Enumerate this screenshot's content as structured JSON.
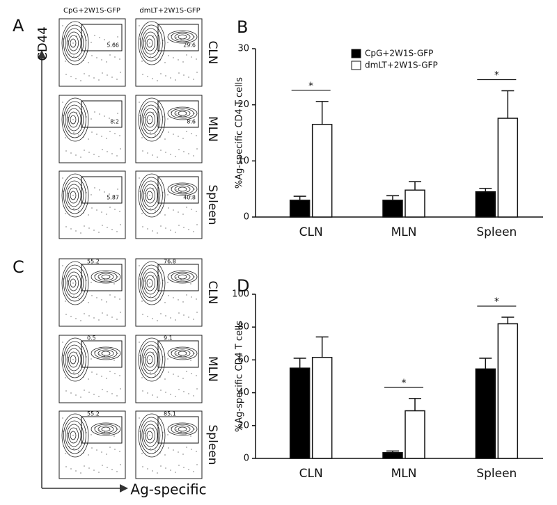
{
  "chart_data": [
    {
      "type": "bar",
      "ylabel": "%Ag-specific CD4 T cells",
      "categories": [
        "CLN",
        "MLN",
        "Spleen"
      ],
      "series": [
        {
          "name": "CpG+2W1S-GFP",
          "color": "#000000",
          "values": [
            3.0,
            3.0,
            4.5
          ],
          "errors": [
            0.7,
            0.8,
            0.6
          ]
        },
        {
          "name": "dmLT+2W1S-GFP",
          "color": "#ffffff",
          "values": [
            16.5,
            4.8,
            17.6
          ],
          "errors": [
            4.1,
            1.5,
            4.9
          ]
        }
      ],
      "ylim": [
        0,
        30
      ],
      "yticks": [
        0,
        10,
        20,
        30
      ],
      "annotations": [
        "*",
        "*"
      ],
      "legend": "top"
    },
    {
      "type": "bar",
      "ylabel": "%Ag-specific CD4 T cells",
      "categories": [
        "CLN",
        "MLN",
        "Spleen"
      ],
      "series": [
        {
          "color": "#000000",
          "values": [
            55,
            3.5,
            54.5
          ],
          "errors": [
            6,
            1,
            6.5
          ]
        },
        {
          "color": "#ffffff",
          "values": [
            61.5,
            29,
            82
          ],
          "errors": [
            12.5,
            7.5,
            4
          ]
        }
      ],
      "ylim": [
        0,
        100
      ],
      "yticks": [
        0,
        20,
        40,
        60,
        80,
        100
      ],
      "annotations": [
        "*",
        "*"
      ]
    }
  ],
  "labels": {
    "panels": [
      "A",
      "B",
      "C",
      "D"
    ],
    "conditions": [
      "CpG+2W1S-GFP",
      "dmLT+2W1S-GFP"
    ],
    "tissues": [
      "CLN",
      "MLN",
      "Spleen"
    ],
    "y_axis": "CD44",
    "x_axis": "Ag-specific",
    "gates_a": [
      [
        "5.66",
        "29.6"
      ],
      [
        "8.2",
        "8.6"
      ],
      [
        "5.87",
        "40.8"
      ]
    ],
    "gates_c": [
      [
        "55.2",
        "76.8"
      ],
      [
        "0.5",
        "9.1"
      ],
      [
        "55.2",
        "85.1"
      ]
    ]
  }
}
